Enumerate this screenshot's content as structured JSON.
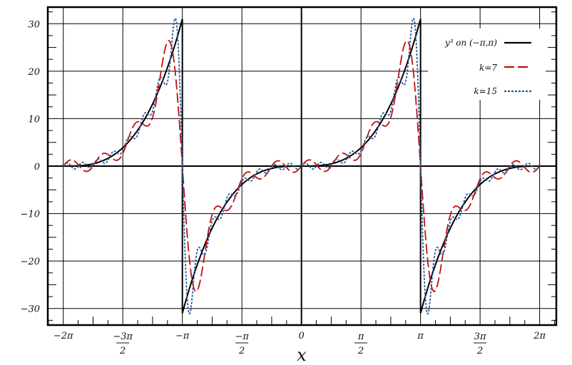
{
  "chart_data": {
    "type": "line",
    "title": "",
    "xlabel": "x",
    "ylabel": "",
    "xlim_over_pi": [
      -2.13,
      2.14
    ],
    "ylim": [
      -33.5,
      33.5
    ],
    "grid": true,
    "legend_placement": "top-right",
    "x_ticks": [
      {
        "value_over_pi": -2,
        "num": "−2π",
        "den": ""
      },
      {
        "value_over_pi": -1.5,
        "num": "−3π",
        "den": "2"
      },
      {
        "value_over_pi": -1,
        "num": "−π",
        "den": ""
      },
      {
        "value_over_pi": -0.5,
        "num": "−π",
        "den": "2"
      },
      {
        "value_over_pi": 0,
        "num": "0",
        "den": ""
      },
      {
        "value_over_pi": 0.5,
        "num": "π",
        "den": "2"
      },
      {
        "value_over_pi": 1,
        "num": "π",
        "den": ""
      },
      {
        "value_over_pi": 1.5,
        "num": "3π",
        "den": "2"
      },
      {
        "value_over_pi": 2,
        "num": "2π",
        "den": ""
      }
    ],
    "y_ticks": [
      {
        "value": 30,
        "label": "30"
      },
      {
        "value": 20,
        "label": "20"
      },
      {
        "value": 10,
        "label": "10"
      },
      {
        "value": 0,
        "label": "0"
      },
      {
        "value": -10,
        "label": "−10"
      },
      {
        "value": -20,
        "label": "−20"
      },
      {
        "value": -30,
        "label": "−30"
      }
    ],
    "series": [
      {
        "name": "y³ on (−π,π)",
        "function": "x^3 periodic on (-pi,pi)",
        "color": "#000000",
        "style": "solid"
      },
      {
        "name": "k=7",
        "function": "Fourier partial sum, 7 terms",
        "terms": 7,
        "color": "#c01010",
        "style": "long-dash"
      },
      {
        "name": "k=15",
        "function": "Fourier partial sum, 15 terms",
        "terms": 15,
        "color": "#2c5a9a",
        "style": "dotted"
      }
    ]
  }
}
